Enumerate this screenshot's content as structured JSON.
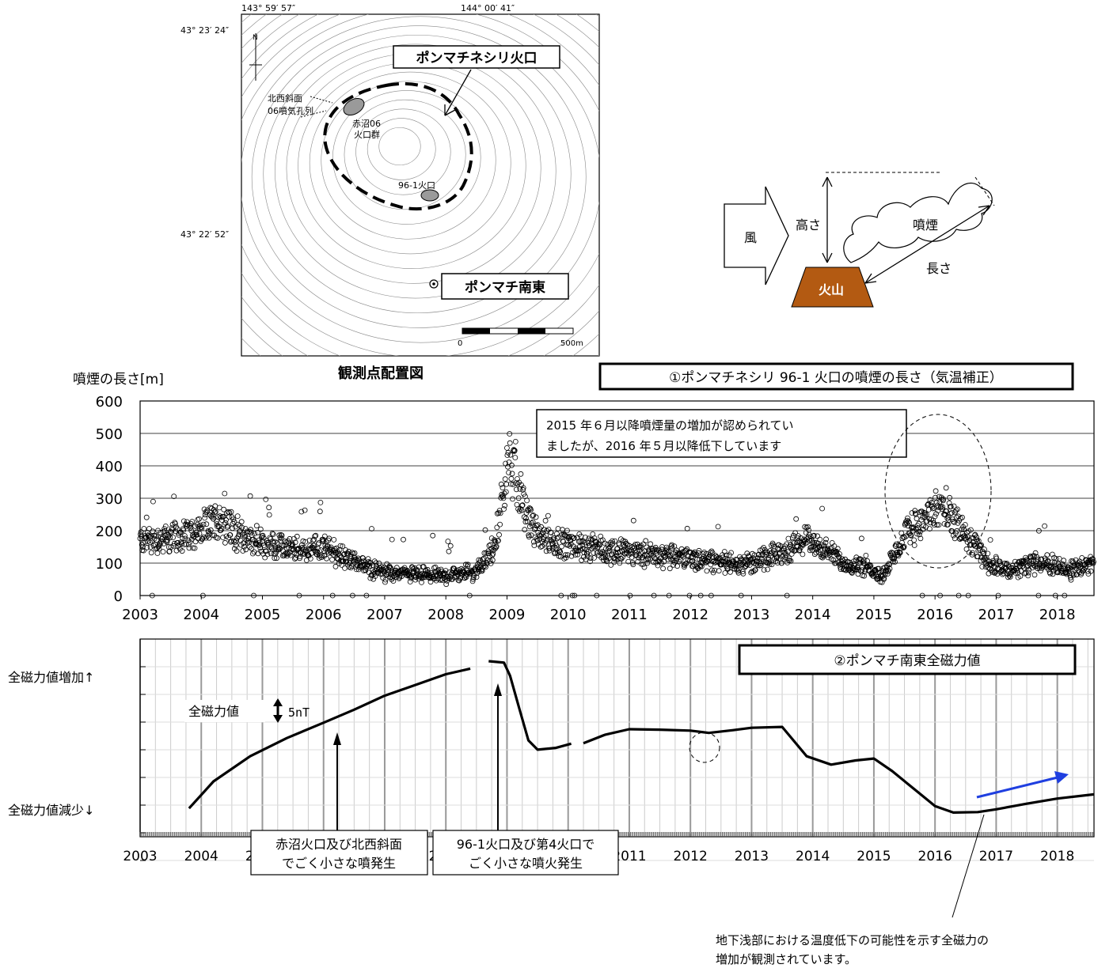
{
  "map": {
    "lon_left": "143° 59′ 57″",
    "lon_right": "144° 00′ 41″",
    "lat_top": "43° 23′ 24″",
    "lat_bottom": "43° 22′ 52″",
    "crater_box": "ポンマチネシリ火口",
    "northwest_label_1": "北西斜面",
    "northwest_label_2": "06噴気孔列",
    "akanuma_label_1": "赤沼06",
    "akanuma_label_2": "火口群",
    "crater_961": "96-1火口",
    "station_box": "ポンマチ南東",
    "scale_zero": "0",
    "scale_end": "500m",
    "caption": "観測点配置図"
  },
  "diagram": {
    "wind": "風",
    "height": "高さ",
    "plume": "噴煙",
    "length": "長さ",
    "volcano": "火山"
  },
  "chart_data": [
    {
      "type": "scatter",
      "title": "①ポンマチネシリ 96-1 火口の噴煙の長さ（気温補正）",
      "ylabel": "噴煙の長さ[m]",
      "ylim": [
        0,
        600
      ],
      "yticks": [
        "0",
        "100",
        "200",
        "300",
        "400",
        "500",
        "600"
      ],
      "xlim": [
        2003,
        2018.6
      ],
      "xticks": [
        "2003",
        "2004",
        "2005",
        "2006",
        "2007",
        "2008",
        "2009",
        "2010",
        "2011",
        "2012",
        "2013",
        "2014",
        "2015",
        "2016",
        "2017",
        "2018"
      ],
      "grid": true,
      "annotation_1": "2015 年６月以降噴煙量の増加が認められてい",
      "annotation_2": "ましたが、2016 年５月以降低下しています",
      "trend": [
        [
          2003.0,
          170
        ],
        [
          2003.5,
          175
        ],
        [
          2004.0,
          200
        ],
        [
          2004.3,
          240
        ],
        [
          2004.6,
          190
        ],
        [
          2005.0,
          160
        ],
        [
          2005.5,
          140
        ],
        [
          2006.0,
          150
        ],
        [
          2006.3,
          120
        ],
        [
          2006.7,
          90
        ],
        [
          2007.0,
          70
        ],
        [
          2007.5,
          65
        ],
        [
          2008.0,
          60
        ],
        [
          2008.5,
          75
        ],
        [
          2008.8,
          150
        ],
        [
          2008.95,
          330
        ],
        [
          2009.05,
          420
        ],
        [
          2009.2,
          320
        ],
        [
          2009.4,
          210
        ],
        [
          2009.7,
          170
        ],
        [
          2010.0,
          160
        ],
        [
          2010.5,
          140
        ],
        [
          2011.0,
          135
        ],
        [
          2011.5,
          125
        ],
        [
          2012.0,
          115
        ],
        [
          2012.5,
          105
        ],
        [
          2013.0,
          100
        ],
        [
          2013.5,
          130
        ],
        [
          2013.9,
          175
        ],
        [
          2014.1,
          155
        ],
        [
          2014.5,
          100
        ],
        [
          2014.9,
          90
        ],
        [
          2015.15,
          60
        ],
        [
          2015.35,
          130
        ],
        [
          2015.6,
          210
        ],
        [
          2015.9,
          240
        ],
        [
          2016.1,
          280
        ],
        [
          2016.3,
          230
        ],
        [
          2016.6,
          160
        ],
        [
          2016.9,
          100
        ],
        [
          2017.2,
          75
        ],
        [
          2017.6,
          95
        ],
        [
          2017.9,
          100
        ],
        [
          2018.2,
          75
        ],
        [
          2018.6,
          110
        ]
      ]
    },
    {
      "type": "line",
      "title": "②ポンマチ南東全磁力値",
      "xlim": [
        2003,
        2018.6
      ],
      "xticks": [
        "2003",
        "2004",
        "2005",
        "2006",
        "2007",
        "2008",
        "2009",
        "2010",
        "2011",
        "2012",
        "2013",
        "2014",
        "2015",
        "2016",
        "2017",
        "2018"
      ],
      "ylabel_top": "全磁力値増加↑",
      "ylabel_bottom": "全磁力値減少↓",
      "ylim": [
        0,
        36
      ],
      "scale_label": "全磁力値",
      "scale_value": "5nT",
      "grid": true,
      "series": [
        {
          "x": [
            2003.8,
            2004.2,
            2004.8,
            2005.4,
            2006.0,
            2006.5,
            2007.0,
            2007.5,
            2008.0,
            2008.4
          ],
          "y": [
            1.0,
            6.8,
            12.2,
            16.1,
            19.4,
            22.2,
            25.2,
            27.5,
            29.8,
            31.0
          ]
        },
        {
          "x": [
            2008.7,
            2008.95,
            2009.05,
            2009.2,
            2009.35,
            2009.5,
            2009.8,
            2010.05
          ],
          "y": [
            32.6,
            32.3,
            29.5,
            22.5,
            15.6,
            13.6,
            14.0,
            14.9
          ]
        },
        {
          "x": [
            2010.25,
            2010.6,
            2011.0,
            2011.5,
            2012.0,
            2012.3,
            2012.7,
            2013.0,
            2013.5,
            2013.9,
            2014.3,
            2014.7,
            2015.0,
            2015.3,
            2015.7,
            2016.0,
            2016.3,
            2016.7,
            2017.0,
            2017.5,
            2018.0,
            2018.6
          ],
          "y": [
            15.0,
            16.8,
            18.0,
            17.9,
            17.7,
            17.2,
            17.8,
            18.3,
            18.5,
            12.2,
            10.4,
            11.3,
            11.7,
            9.0,
            4.7,
            1.5,
            0.1,
            0.2,
            0.8,
            2.0,
            3.1,
            4.0
          ]
        }
      ],
      "event_1_line1": "赤沼火口及び北西斜面",
      "event_1_line2": "でごく小さな噴発生",
      "event_2_line1": "96-1火口及び第4火口で",
      "event_2_line2": "ごく小さな噴火発生",
      "note_line1": "地下浅部における温度低下の可能性を示す全磁力の",
      "note_line2": "増加が観測されています。"
    }
  ]
}
